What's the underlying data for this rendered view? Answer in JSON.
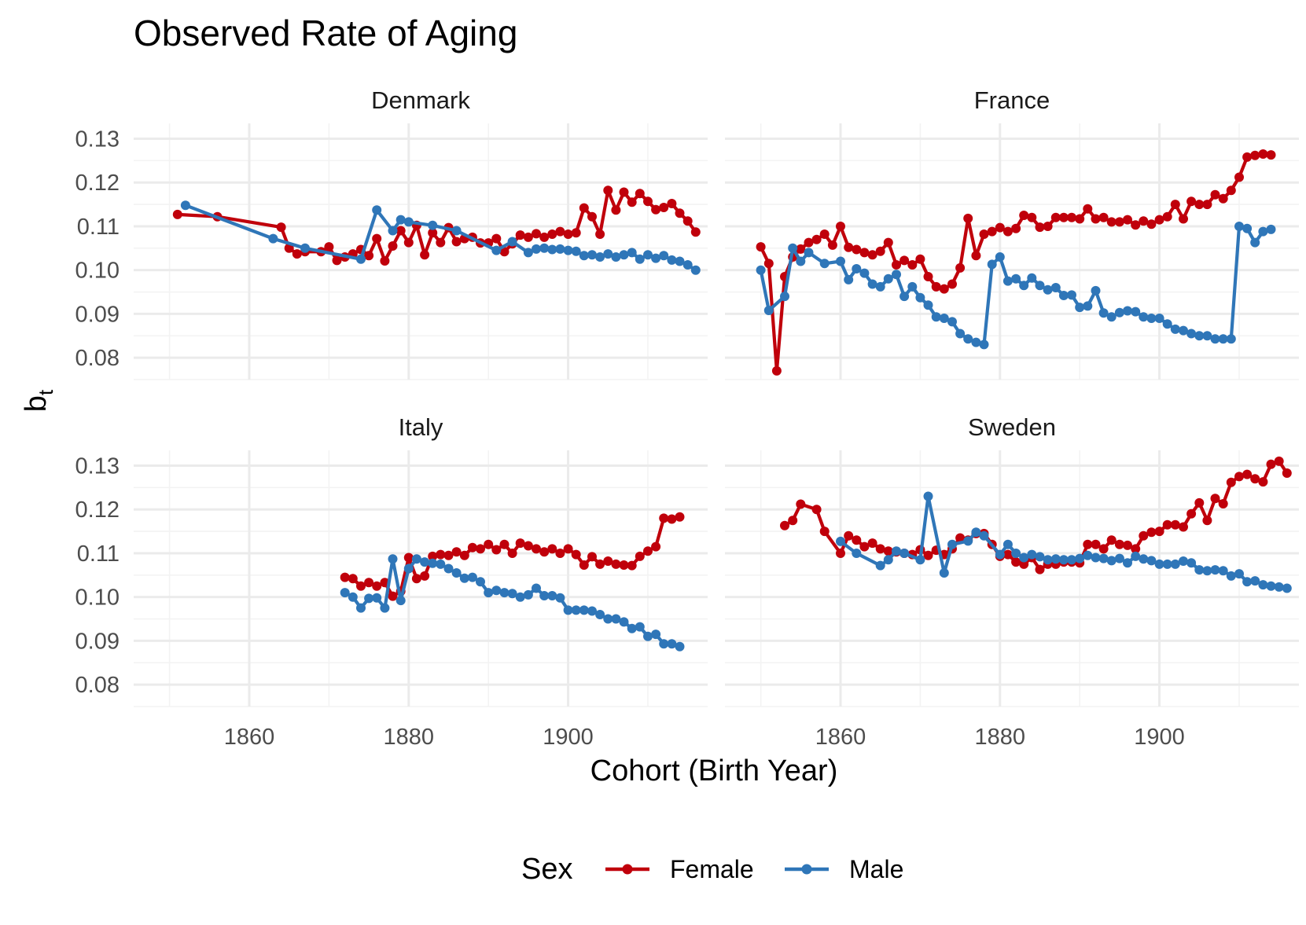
{
  "chart_data": {
    "type": "line",
    "title": "Observed Rate of Aging",
    "xlabel": "Cohort (Birth Year)",
    "ylabel": "b",
    "ylabel_sub": "t",
    "xlim": [
      1845.5,
      1917.5
    ],
    "ylim": [
      0.075,
      0.1335
    ],
    "x_ticks": [
      1860,
      1880,
      1900
    ],
    "y_ticks": [
      0.08,
      0.09,
      0.1,
      0.11,
      0.12,
      0.13
    ],
    "y_tick_labels": [
      "0.08",
      "0.09",
      "0.10",
      "0.11",
      "0.12",
      "0.13"
    ],
    "grid": true,
    "legend": {
      "title": "Sex",
      "position": "bottom",
      "entries": [
        {
          "label": "Female",
          "color": "#c0000b"
        },
        {
          "label": "Male",
          "color": "#2f76b8"
        }
      ]
    },
    "panels": [
      {
        "name": "Denmark",
        "series": [
          {
            "name": "Female",
            "color": "#c0000b",
            "x": [
              1851,
              1856,
              1864,
              1865,
              1866,
              1867,
              1869,
              1870,
              1871,
              1872,
              1873,
              1874,
              1875,
              1876,
              1877,
              1878,
              1879,
              1880,
              1881,
              1882,
              1883,
              1884,
              1885,
              1886,
              1887,
              1888,
              1889,
              1890,
              1891,
              1892,
              1893,
              1894,
              1895,
              1896,
              1897,
              1898,
              1899,
              1900,
              1901,
              1902,
              1903,
              1904,
              1905,
              1906,
              1907,
              1908,
              1909,
              1910,
              1911,
              1912,
              1913,
              1914,
              1915,
              1916
            ],
            "y": [
              0.1127,
              0.1122,
              0.1098,
              0.105,
              0.1037,
              0.1042,
              0.1042,
              0.1053,
              0.1022,
              0.103,
              0.1037,
              0.1047,
              0.1033,
              0.1072,
              0.1021,
              0.1055,
              0.109,
              0.1063,
              0.1102,
              0.1035,
              0.1085,
              0.1063,
              0.1097,
              0.1065,
              0.1072,
              0.1075,
              0.1062,
              0.1062,
              0.1072,
              0.1042,
              0.106,
              0.108,
              0.1075,
              0.1083,
              0.1075,
              0.1082,
              0.1088,
              0.1082,
              0.1085,
              0.1142,
              0.1122,
              0.1082,
              0.1182,
              0.1137,
              0.1178,
              0.1155,
              0.1175,
              0.1157,
              0.1138,
              0.1143,
              0.1152,
              0.113,
              0.1112,
              0.1087
            ]
          },
          {
            "name": "Male",
            "color": "#2f76b8",
            "x": [
              1852,
              1863,
              1867,
              1874,
              1876,
              1878,
              1879,
              1880,
              1883,
              1886,
              1891,
              1893,
              1895,
              1896,
              1897,
              1898,
              1899,
              1900,
              1901,
              1902,
              1903,
              1904,
              1905,
              1906,
              1907,
              1908,
              1909,
              1910,
              1911,
              1912,
              1913,
              1914,
              1915,
              1916
            ],
            "y": [
              0.1148,
              0.1072,
              0.105,
              0.1025,
              0.1137,
              0.109,
              0.1115,
              0.111,
              0.1102,
              0.109,
              0.1045,
              0.1065,
              0.104,
              0.1048,
              0.105,
              0.1047,
              0.1048,
              0.1045,
              0.1043,
              0.1033,
              0.1035,
              0.103,
              0.1037,
              0.103,
              0.1035,
              0.104,
              0.1025,
              0.1035,
              0.1027,
              0.1033,
              0.1023,
              0.102,
              0.1012,
              0.1
            ]
          }
        ]
      },
      {
        "name": "France",
        "series": [
          {
            "name": "Female",
            "color": "#c0000b",
            "x": [
              1850,
              1851,
              1852,
              1853,
              1854,
              1855,
              1856,
              1857,
              1858,
              1859,
              1860,
              1861,
              1862,
              1863,
              1864,
              1865,
              1866,
              1867,
              1868,
              1869,
              1870,
              1871,
              1872,
              1873,
              1874,
              1875,
              1876,
              1877,
              1878,
              1879,
              1880,
              1881,
              1882,
              1883,
              1884,
              1885,
              1886,
              1887,
              1888,
              1889,
              1890,
              1891,
              1892,
              1893,
              1894,
              1895,
              1896,
              1897,
              1898,
              1899,
              1900,
              1901,
              1902,
              1903,
              1904,
              1905,
              1906,
              1907,
              1908,
              1909,
              1910,
              1911,
              1912,
              1913,
              1914
            ],
            "y": [
              0.1053,
              0.1015,
              0.077,
              0.0985,
              0.103,
              0.1048,
              0.1063,
              0.107,
              0.1082,
              0.1057,
              0.11,
              0.1052,
              0.1047,
              0.104,
              0.1035,
              0.1043,
              0.1063,
              0.1012,
              0.1022,
              0.1012,
              0.1025,
              0.0985,
              0.0962,
              0.0957,
              0.0968,
              0.1005,
              0.1118,
              0.1033,
              0.1082,
              0.1088,
              0.1097,
              0.1088,
              0.1095,
              0.1125,
              0.112,
              0.1098,
              0.11,
              0.112,
              0.112,
              0.112,
              0.1117,
              0.114,
              0.1117,
              0.112,
              0.111,
              0.111,
              0.1115,
              0.1103,
              0.1112,
              0.1105,
              0.1115,
              0.1122,
              0.115,
              0.1117,
              0.1157,
              0.115,
              0.115,
              0.1172,
              0.1163,
              0.1182,
              0.1212,
              0.1258,
              0.1262,
              0.1265,
              0.1263
            ]
          },
          {
            "name": "Male",
            "color": "#2f76b8",
            "x": [
              1850,
              1851,
              1853,
              1854,
              1855,
              1856,
              1858,
              1860,
              1861,
              1862,
              1863,
              1864,
              1865,
              1866,
              1867,
              1868,
              1869,
              1870,
              1871,
              1872,
              1873,
              1874,
              1875,
              1876,
              1877,
              1878,
              1879,
              1880,
              1881,
              1882,
              1883,
              1884,
              1885,
              1886,
              1887,
              1888,
              1889,
              1890,
              1891,
              1892,
              1893,
              1894,
              1895,
              1896,
              1897,
              1898,
              1899,
              1900,
              1901,
              1902,
              1903,
              1904,
              1905,
              1906,
              1907,
              1908,
              1909,
              1910,
              1911,
              1912,
              1913,
              1914
            ],
            "y": [
              0.1,
              0.0908,
              0.094,
              0.105,
              0.102,
              0.104,
              0.1015,
              0.102,
              0.0978,
              0.1003,
              0.0993,
              0.0968,
              0.0962,
              0.098,
              0.099,
              0.094,
              0.0962,
              0.0937,
              0.092,
              0.0893,
              0.089,
              0.0882,
              0.0855,
              0.0843,
              0.0835,
              0.083,
              0.1013,
              0.103,
              0.0975,
              0.098,
              0.0965,
              0.0982,
              0.0965,
              0.0955,
              0.096,
              0.0942,
              0.0943,
              0.0915,
              0.0918,
              0.0953,
              0.0902,
              0.0893,
              0.0903,
              0.0907,
              0.0905,
              0.0893,
              0.089,
              0.089,
              0.0877,
              0.0865,
              0.0862,
              0.0855,
              0.085,
              0.085,
              0.0843,
              0.0843,
              0.0843,
              0.11,
              0.1095,
              0.1063,
              0.1088,
              0.1093
            ]
          }
        ]
      },
      {
        "name": "Italy",
        "series": [
          {
            "name": "Female",
            "color": "#c0000b",
            "x": [
              1872,
              1873,
              1874,
              1875,
              1876,
              1877,
              1878,
              1879,
              1880,
              1881,
              1882,
              1883,
              1884,
              1885,
              1886,
              1887,
              1888,
              1889,
              1890,
              1891,
              1892,
              1893,
              1894,
              1895,
              1896,
              1897,
              1898,
              1899,
              1900,
              1901,
              1902,
              1903,
              1904,
              1905,
              1906,
              1907,
              1908,
              1909,
              1910,
              1911,
              1912,
              1913,
              1914
            ],
            "y": [
              0.1045,
              0.1042,
              0.1025,
              0.1033,
              0.1025,
              0.1033,
              0.1002,
              0.1013,
              0.109,
              0.1042,
              0.1048,
              0.1093,
              0.1097,
              0.1095,
              0.1103,
              0.1095,
              0.1113,
              0.111,
              0.112,
              0.1108,
              0.112,
              0.11,
              0.1123,
              0.1117,
              0.111,
              0.1103,
              0.111,
              0.11,
              0.111,
              0.1097,
              0.1073,
              0.1092,
              0.1075,
              0.1082,
              0.1075,
              0.1073,
              0.1072,
              0.1093,
              0.1105,
              0.1115,
              0.118,
              0.1178,
              0.1183
            ]
          },
          {
            "name": "Male",
            "color": "#2f76b8",
            "x": [
              1872,
              1873,
              1874,
              1875,
              1876,
              1877,
              1878,
              1879,
              1880,
              1881,
              1882,
              1883,
              1884,
              1885,
              1886,
              1887,
              1888,
              1889,
              1890,
              1891,
              1892,
              1893,
              1894,
              1895,
              1896,
              1897,
              1898,
              1899,
              1900,
              1901,
              1902,
              1903,
              1904,
              1905,
              1906,
              1907,
              1908,
              1909,
              1910,
              1911,
              1912,
              1913,
              1914
            ],
            "y": [
              0.101,
              0.1,
              0.0975,
              0.0997,
              0.0998,
              0.0975,
              0.1087,
              0.0992,
              0.1065,
              0.1087,
              0.108,
              0.1077,
              0.1075,
              0.1065,
              0.1055,
              0.1043,
              0.1045,
              0.1035,
              0.101,
              0.1015,
              0.101,
              0.1008,
              0.1,
              0.1005,
              0.102,
              0.1003,
              0.1003,
              0.0998,
              0.097,
              0.097,
              0.097,
              0.0968,
              0.096,
              0.095,
              0.095,
              0.0943,
              0.0928,
              0.0932,
              0.091,
              0.0915,
              0.0893,
              0.0893,
              0.0887
            ]
          }
        ]
      },
      {
        "name": "Sweden",
        "series": [
          {
            "name": "Female",
            "color": "#c0000b",
            "x": [
              1853,
              1854,
              1855,
              1857,
              1858,
              1860,
              1861,
              1862,
              1863,
              1864,
              1865,
              1866,
              1867,
              1868,
              1869,
              1870,
              1871,
              1872,
              1873,
              1874,
              1875,
              1876,
              1877,
              1878,
              1879,
              1880,
              1881,
              1882,
              1883,
              1884,
              1885,
              1886,
              1887,
              1888,
              1889,
              1890,
              1891,
              1892,
              1893,
              1894,
              1895,
              1896,
              1897,
              1898,
              1899,
              1900,
              1901,
              1902,
              1903,
              1904,
              1905,
              1906,
              1907,
              1908,
              1909,
              1910,
              1911,
              1912,
              1913,
              1914,
              1915,
              1916
            ],
            "y": [
              0.1163,
              0.1175,
              0.1212,
              0.12,
              0.115,
              0.11,
              0.114,
              0.113,
              0.1115,
              0.1123,
              0.111,
              0.1105,
              0.1103,
              0.11,
              0.1097,
              0.1108,
              0.1095,
              0.1107,
              0.1097,
              0.111,
              0.1135,
              0.113,
              0.1145,
              0.1145,
              0.112,
              0.1093,
              0.1097,
              0.108,
              0.1075,
              0.109,
              0.1063,
              0.1075,
              0.1075,
              0.108,
              0.108,
              0.1078,
              0.112,
              0.112,
              0.111,
              0.113,
              0.112,
              0.1118,
              0.111,
              0.114,
              0.1148,
              0.115,
              0.1165,
              0.1165,
              0.116,
              0.119,
              0.1215,
              0.1175,
              0.1225,
              0.1213,
              0.1262,
              0.1275,
              0.128,
              0.127,
              0.1263,
              0.1303,
              0.131,
              0.1283
            ]
          },
          {
            "name": "Male",
            "color": "#2f76b8",
            "x": [
              1860,
              1862,
              1865,
              1866,
              1867,
              1868,
              1870,
              1871,
              1873,
              1874,
              1876,
              1877,
              1878,
              1880,
              1881,
              1882,
              1883,
              1884,
              1885,
              1886,
              1887,
              1888,
              1889,
              1890,
              1891,
              1892,
              1893,
              1894,
              1895,
              1896,
              1897,
              1898,
              1899,
              1900,
              1901,
              1902,
              1903,
              1904,
              1905,
              1906,
              1907,
              1908,
              1909,
              1910,
              1911,
              1912,
              1913,
              1914,
              1915,
              1916
            ],
            "y": [
              0.1127,
              0.11,
              0.1072,
              0.1085,
              0.1105,
              0.11,
              0.1085,
              0.123,
              0.1055,
              0.112,
              0.1128,
              0.1148,
              0.114,
              0.1097,
              0.112,
              0.11,
              0.109,
              0.1097,
              0.1092,
              0.1085,
              0.1087,
              0.1085,
              0.1085,
              0.1088,
              0.1095,
              0.109,
              0.1088,
              0.1083,
              0.1088,
              0.1078,
              0.1093,
              0.1087,
              0.1083,
              0.1075,
              0.1075,
              0.1075,
              0.1082,
              0.1078,
              0.1062,
              0.106,
              0.1062,
              0.106,
              0.1048,
              0.1053,
              0.1035,
              0.1037,
              0.1028,
              0.1025,
              0.1023,
              0.102
            ]
          }
        ]
      }
    ]
  }
}
